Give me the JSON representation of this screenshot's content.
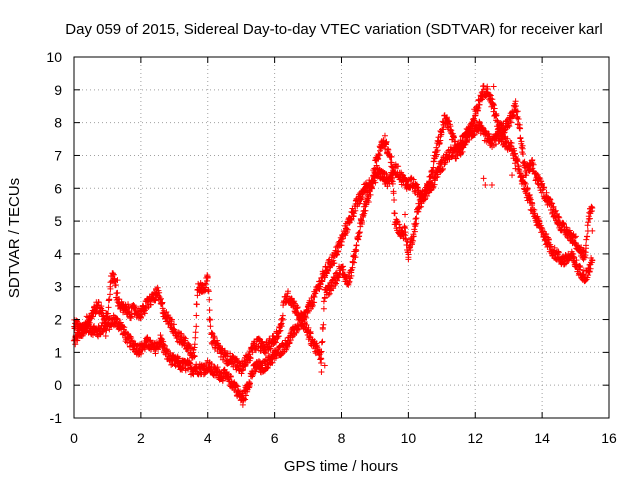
{
  "chart_data": {
    "type": "scatter",
    "title": "Day 059 of 2015, Sidereal Day-to-day VTEC variation (SDTVAR) for receiver karl",
    "xlabel": "GPS time / hours",
    "ylabel": "SDTVAR / TECUs",
    "xlim": [
      0,
      16
    ],
    "ylim": [
      -1,
      10
    ],
    "xticks": [
      "0",
      "2",
      "4",
      "6",
      "8",
      "10",
      "12",
      "14",
      "16"
    ],
    "yticks": [
      "-1",
      "0",
      "1",
      "2",
      "3",
      "4",
      "5",
      "6",
      "7",
      "8",
      "9",
      "10"
    ],
    "grid": true,
    "marker": "+",
    "series": [
      {
        "name": "SDTVAR",
        "color": "#ff0000",
        "x": [
          0.0,
          0.1,
          0.2,
          0.3,
          0.4,
          0.5,
          0.6,
          0.7,
          0.8,
          0.9,
          1.0,
          1.1,
          1.2,
          1.3,
          1.4,
          1.5,
          1.6,
          1.7,
          1.8,
          1.9,
          2.0,
          2.1,
          2.2,
          2.3,
          2.4,
          2.5,
          2.6,
          2.7,
          2.8,
          2.9,
          3.0,
          3.1,
          3.2,
          3.3,
          3.4,
          3.5,
          3.6,
          3.7,
          3.8,
          3.9,
          4.0,
          4.1,
          4.2,
          4.3,
          4.4,
          4.5,
          4.6,
          4.7,
          4.8,
          4.9,
          5.0,
          5.1,
          5.2,
          5.3,
          5.4,
          5.5,
          5.6,
          5.7,
          5.8,
          5.9,
          6.0,
          6.1,
          6.2,
          6.3,
          6.4,
          6.5,
          6.6,
          6.7,
          6.8,
          6.9,
          7.0,
          7.1,
          7.2,
          7.3,
          7.4,
          7.5,
          7.6,
          7.7,
          7.8,
          7.9,
          8.0,
          8.1,
          8.2,
          8.3,
          8.4,
          8.5,
          8.6,
          8.7,
          8.8,
          8.9,
          9.0,
          9.1,
          9.2,
          9.3,
          9.4,
          9.5,
          9.6,
          9.7,
          9.8,
          9.9,
          10.0,
          10.1,
          10.2,
          10.3,
          10.4,
          10.5,
          10.6,
          10.7,
          10.8,
          10.9,
          11.0,
          11.1,
          11.2,
          11.3,
          11.4,
          11.5,
          11.6,
          11.7,
          11.8,
          11.9,
          12.0,
          12.1,
          12.2,
          12.3,
          12.4,
          12.5,
          12.6,
          12.7,
          12.8,
          12.9,
          13.0,
          13.1,
          13.2,
          13.3,
          13.4,
          13.5,
          13.6,
          13.7,
          13.8,
          13.9,
          14.0,
          14.1,
          14.2,
          14.3,
          14.4,
          14.5,
          14.6,
          14.7,
          14.8,
          14.9,
          15.0,
          15.1,
          15.2,
          15.3,
          15.4,
          15.5
        ],
        "lines": [
          [
            1.3,
            1.5,
            1.7,
            1.8,
            1.8,
            1.7,
            1.7,
            1.6,
            1.7,
            1.8,
            1.8,
            1.9,
            2.0,
            1.9,
            1.8,
            1.6,
            1.4,
            1.3,
            1.2,
            1.1,
            1.1,
            1.2,
            1.3,
            1.2,
            1.1,
            1.2,
            1.4,
            1.1,
            0.9,
            0.8,
            0.7,
            0.7,
            0.6,
            0.6,
            0.6,
            0.5,
            0.5,
            0.5,
            0.5,
            0.5,
            0.6,
            0.5,
            0.4,
            0.4,
            0.3,
            0.3,
            0.2,
            0.1,
            0.0,
            -0.2,
            -0.4,
            -0.3,
            0.0,
            0.3,
            0.5,
            0.6,
            0.5,
            0.6,
            0.7,
            0.8,
            0.9,
            1.0,
            1.1,
            1.2,
            1.3,
            1.5,
            1.7,
            1.8,
            2.0,
            2.1,
            2.3,
            2.5,
            2.7,
            3.0,
            3.2,
            3.4,
            3.6,
            3.8,
            3.9,
            4.2,
            4.4,
            4.7,
            4.9,
            5.2,
            5.4,
            5.6,
            5.8,
            6.0,
            6.1,
            6.2,
            6.3,
            6.5,
            6.4,
            6.3,
            6.2,
            6.4,
            6.6,
            6.5,
            6.3,
            6.2,
            6.1,
            6.2,
            6.0,
            5.9,
            5.8,
            5.8,
            6.0,
            6.1,
            6.3,
            6.6,
            6.7,
            6.9,
            7.0,
            7.1,
            7.0,
            7.2,
            7.4,
            7.5,
            7.6,
            7.7,
            7.8,
            7.9,
            7.7,
            7.6,
            7.5,
            7.4,
            7.5,
            7.6,
            7.5,
            7.4,
            7.3,
            7.2,
            6.9,
            6.6,
            6.3,
            6.0,
            5.7,
            5.4,
            5.1,
            4.9,
            4.7,
            4.5,
            4.3,
            4.1,
            4.0,
            3.9,
            3.8,
            3.8,
            3.9,
            3.9,
            3.7,
            3.5,
            3.4,
            3.3,
            3.5,
            3.8
          ],
          [
            1.9,
            1.8,
            1.6,
            1.7,
            2.0,
            2.1,
            2.3,
            2.4,
            2.3,
            2.1,
            2.0,
            3.2,
            3.3,
            2.6,
            2.4,
            2.3,
            2.3,
            2.2,
            2.3,
            2.2,
            2.2,
            2.3,
            2.5,
            2.6,
            2.7,
            2.8,
            2.5,
            2.2,
            2.0,
            1.9,
            1.7,
            1.5,
            1.4,
            1.3,
            1.2,
            1.0,
            1.0,
            2.9,
            3.0,
            3.0,
            3.2,
            1.5,
            1.3,
            1.2,
            1.0,
            0.9,
            0.8,
            0.8,
            0.7,
            0.6,
            0.5,
            0.7,
            0.8,
            1.0,
            1.2,
            1.3,
            1.2,
            1.1,
            1.2,
            1.3,
            1.4,
            1.6,
            1.8,
            2.6,
            2.7,
            2.6,
            2.4,
            2.2,
            2.0,
            1.8,
            1.6,
            1.4,
            1.2,
            1.0,
            0.8,
            2.8,
            2.9,
            3.0,
            3.2,
            3.4,
            3.6,
            3.3,
            3.2,
            3.5,
            4.0,
            4.5,
            5.0,
            5.4,
            5.7,
            6.1,
            6.7,
            7.0,
            7.3,
            7.4,
            7.1,
            6.8,
            5.0,
            4.8,
            4.6,
            4.7,
            4.0,
            4.4,
            4.9,
            5.4,
            5.7,
            5.9,
            6.1,
            6.4,
            7.0,
            7.4,
            7.8,
            8.1,
            8.0,
            7.6,
            7.3,
            7.1,
            7.2,
            7.5,
            7.8,
            8.0,
            8.3,
            8.6,
            8.9,
            9.0,
            8.9,
            8.6,
            8.2,
            7.9,
            7.8,
            7.9,
            8.0,
            8.2,
            8.5,
            8.0,
            7.2,
            6.5,
            6.6,
            6.7,
            6.4,
            6.2,
            6.0,
            5.8,
            5.6,
            5.4,
            5.2,
            5.0,
            4.8,
            4.7,
            4.6,
            4.5,
            4.4,
            4.2,
            4.0,
            3.9,
            5.2,
            5.4
          ]
        ],
        "extra_points": [
          [
            0.95,
            1.5
          ],
          [
            1.3,
            3.2
          ],
          [
            3.8,
            2.9
          ],
          [
            4.0,
            3.3
          ],
          [
            5.05,
            -0.6
          ],
          [
            7.4,
            0.4
          ],
          [
            7.5,
            0.6
          ],
          [
            9.3,
            7.6
          ],
          [
            9.5,
            6.2
          ],
          [
            9.9,
            5.2
          ],
          [
            10.0,
            3.9
          ],
          [
            12.25,
            6.3
          ],
          [
            12.3,
            6.1
          ],
          [
            12.5,
            6.1
          ],
          [
            12.55,
            9.1
          ],
          [
            13.1,
            6.4
          ],
          [
            13.2,
            6.6
          ],
          [
            14.5,
            5.0
          ],
          [
            15.5,
            4.7
          ]
        ]
      }
    ]
  }
}
